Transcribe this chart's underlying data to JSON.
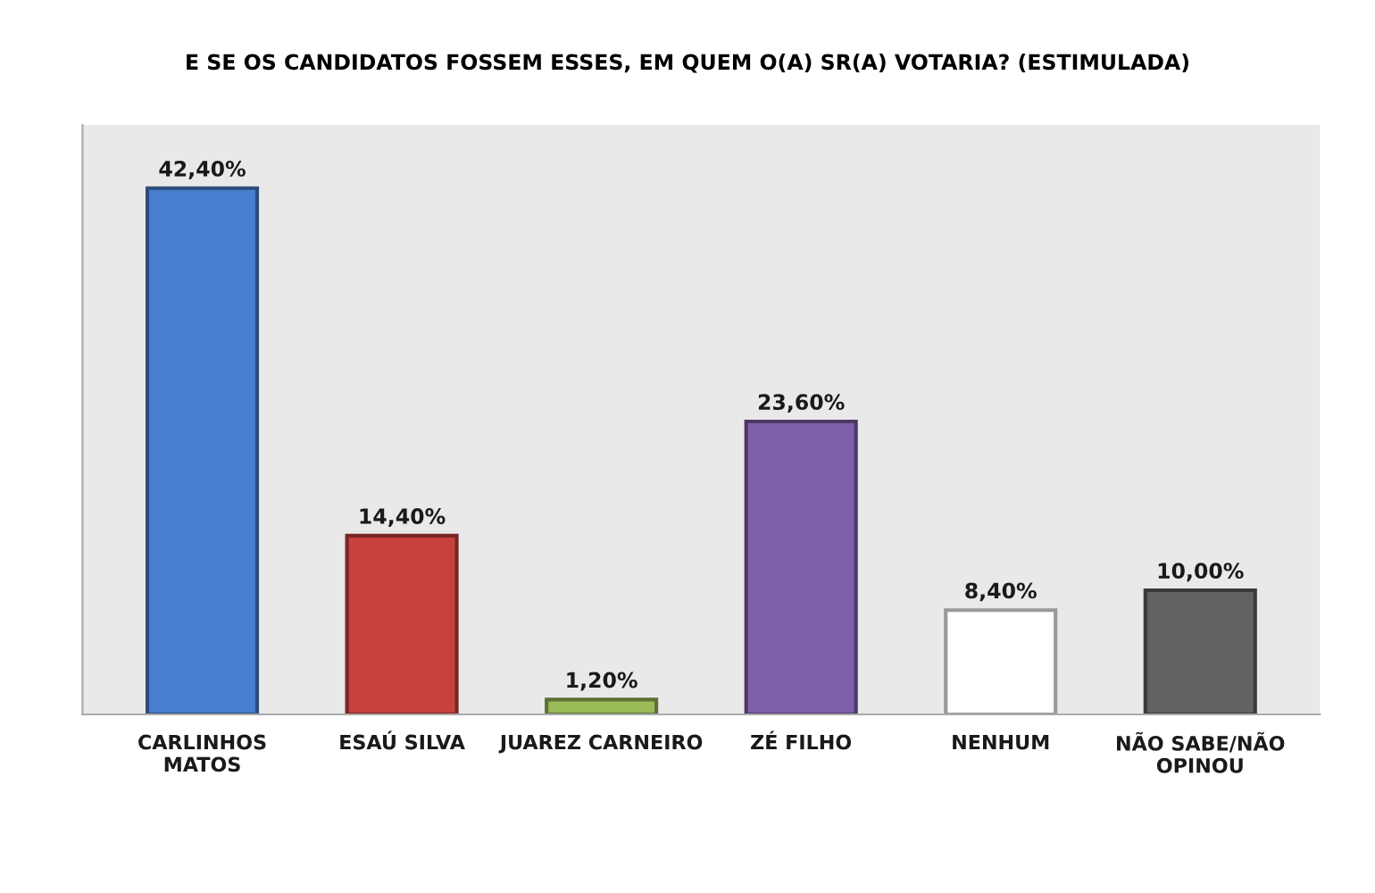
{
  "chart_data": {
    "type": "bar",
    "title": "E SE OS CANDIDATOS FOSSEM ESSES, EM QUEM O(A) SR(A) VOTARIA? (ESTIMULADA)",
    "categories": [
      "CARLINHOS\nMATOS",
      "ESAÚ SILVA",
      "JUAREZ CARNEIRO",
      "ZÉ FILHO",
      "NENHUM",
      "NÃO SABE/NÃO\nOPINOU"
    ],
    "values": [
      42.4,
      14.4,
      1.2,
      23.6,
      8.4,
      10.0
    ],
    "value_labels": [
      "42,40%",
      "14,40%",
      "1,20%",
      "23,60%",
      "8,40%",
      "10,00%"
    ],
    "colors": [
      "#4a7fcf",
      "#c9413f",
      "#9bbb59",
      "#7f5fa8",
      "#ffffff",
      "#626262"
    ],
    "tick_labels": "x",
    "grid": false
  }
}
